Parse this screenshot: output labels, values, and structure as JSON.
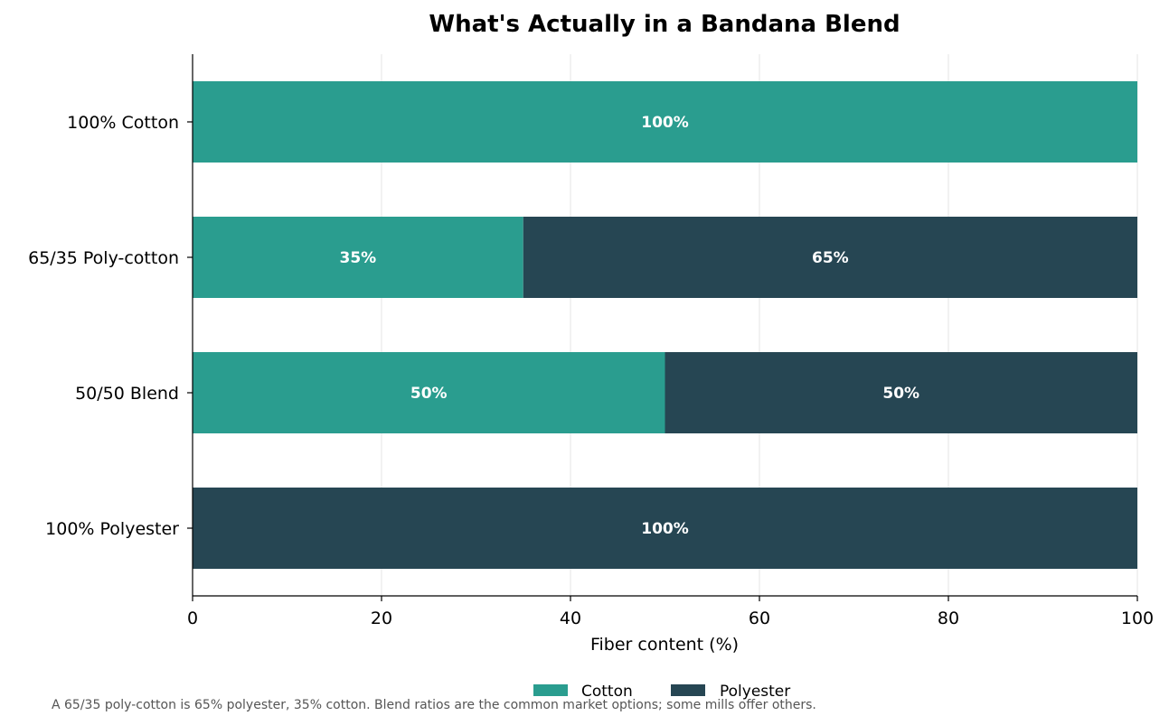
{
  "chart_data": {
    "type": "bar",
    "orientation": "horizontal",
    "stacked": true,
    "title": "What's Actually in a Bandana Blend",
    "xlabel": "Fiber content (%)",
    "ylabel": "",
    "xlim": [
      0,
      100
    ],
    "xticks": [
      "0",
      "20",
      "40",
      "60",
      "80",
      "100"
    ],
    "grid": "vertical",
    "legend_position": "bottom-center",
    "categories": [
      "100% Cotton",
      "65/35 Poly-cotton",
      "50/50 Blend",
      "100% Polyester"
    ],
    "series": [
      {
        "name": "Cotton",
        "color": "#2a9d8f",
        "values": [
          100,
          35,
          50,
          0
        ]
      },
      {
        "name": "Polyester",
        "color": "#264653",
        "values": [
          0,
          65,
          50,
          100
        ]
      }
    ],
    "footnote": "A 65/35 poly-cotton is 65% polyester, 35% cotton. Blend ratios are the common market options; some mills offer others."
  }
}
